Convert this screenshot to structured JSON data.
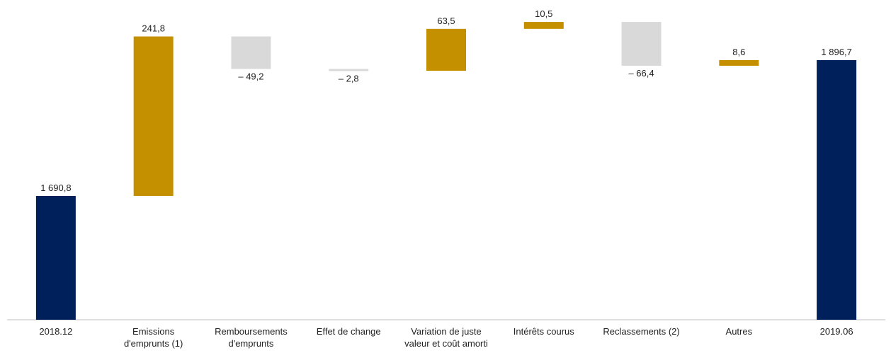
{
  "chart_data": {
    "type": "bar",
    "subtype": "waterfall",
    "categories": [
      [
        "2018.12"
      ],
      [
        "Emissions",
        "d'emprunts (1)"
      ],
      [
        "Remboursements",
        "d'emprunts"
      ],
      [
        "Effet de change"
      ],
      [
        "Variation de juste",
        "valeur et coût amorti"
      ],
      [
        "Intérêts courus"
      ],
      [
        "Reclassements (2)"
      ],
      [
        "Autres"
      ],
      [
        "2019.06"
      ]
    ],
    "bars": [
      {
        "kind": "total",
        "start": 0,
        "end": 1690.8,
        "label": "1 690,8"
      },
      {
        "kind": "increase",
        "start": 1690.8,
        "end": 1932.6,
        "label": "241,8"
      },
      {
        "kind": "decrease",
        "start": 1932.6,
        "end": 1883.4,
        "label": "– 49,2"
      },
      {
        "kind": "decrease",
        "start": 1883.4,
        "end": 1880.6,
        "label": "– 2,8"
      },
      {
        "kind": "increase",
        "start": 1880.6,
        "end": 1944.1,
        "label": "63,5"
      },
      {
        "kind": "increase",
        "start": 1944.1,
        "end": 1954.6,
        "label": "10,5"
      },
      {
        "kind": "decrease",
        "start": 1954.6,
        "end": 1888.2,
        "label": "– 66,4"
      },
      {
        "kind": "increase",
        "start": 1888.2,
        "end": 1896.8,
        "label": "8,6"
      },
      {
        "kind": "total",
        "start": 0,
        "end": 1896.7,
        "label": "1 896,7"
      }
    ],
    "ylim": [
      0,
      1960
    ],
    "grid": false,
    "legend": "none",
    "colors": {
      "total": "#00205b",
      "increase": "#c49000",
      "decrease": "#d9d9d9",
      "axis": "#bfbfbf"
    }
  }
}
